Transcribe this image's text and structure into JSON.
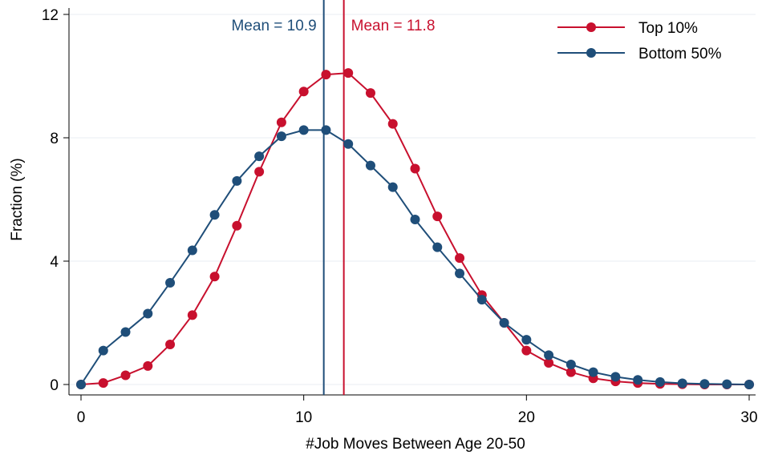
{
  "chart_data": {
    "type": "line",
    "title": "",
    "xlabel": "#Job Moves Between Age 20-50",
    "ylabel": "Fraction (%)",
    "xlim": [
      0,
      30
    ],
    "ylim": [
      0,
      12
    ],
    "xticks": [
      0,
      10,
      20,
      30
    ],
    "yticks": [
      0,
      4,
      8,
      12
    ],
    "grid": true,
    "legend_position": "top-right",
    "x": [
      0,
      1,
      2,
      3,
      4,
      5,
      6,
      7,
      8,
      9,
      10,
      11,
      12,
      13,
      14,
      15,
      16,
      17,
      18,
      19,
      20,
      21,
      22,
      23,
      24,
      25,
      26,
      27,
      28,
      29,
      30
    ],
    "series": [
      {
        "name": "Top 10%",
        "color": "#c8102e",
        "values": [
          0.0,
          0.05,
          0.3,
          0.6,
          1.3,
          2.25,
          3.5,
          5.15,
          6.9,
          8.5,
          9.5,
          10.05,
          10.1,
          9.45,
          8.45,
          7.0,
          5.45,
          4.1,
          2.9,
          2.0,
          1.1,
          0.7,
          0.4,
          0.2,
          0.1,
          0.05,
          0.02,
          0.01,
          0.0,
          0.0,
          0.0
        ]
      },
      {
        "name": "Bottom 50%",
        "color": "#1f4e79",
        "values": [
          0.0,
          1.1,
          1.7,
          2.3,
          3.3,
          4.35,
          5.5,
          6.6,
          7.4,
          8.05,
          8.25,
          8.25,
          7.8,
          7.1,
          6.4,
          5.35,
          4.45,
          3.6,
          2.75,
          2.0,
          1.45,
          0.95,
          0.65,
          0.4,
          0.25,
          0.15,
          0.08,
          0.04,
          0.02,
          0.01,
          0.0
        ]
      }
    ],
    "vlines": [
      {
        "x": 10.9,
        "label": "Mean = 10.9",
        "color": "#1f4e79",
        "label_side": "left"
      },
      {
        "x": 11.8,
        "label": "Mean = 11.8",
        "color": "#c8102e",
        "label_side": "right"
      }
    ]
  }
}
